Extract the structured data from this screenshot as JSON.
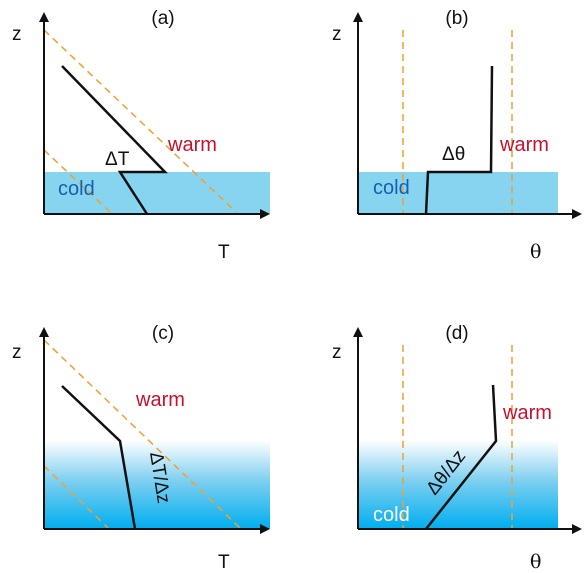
{
  "colors": {
    "cold_fill": "#87d4f1",
    "cold_gradient_bottom": "#00aeef",
    "warm_text": "#c8102e",
    "cold_text_dark": "#1560ad",
    "cold_text_light": "#ffffff",
    "isentrope": "#f0a030",
    "profile": "#111111"
  },
  "panels": [
    {
      "id": "a",
      "label": "(a)",
      "y_axis": "z",
      "x_axis": "T",
      "warm": "warm",
      "cold": "cold",
      "jump": "ΔT"
    },
    {
      "id": "b",
      "label": "(b)",
      "y_axis": "z",
      "x_axis": "θ",
      "warm": "warm",
      "cold": "cold",
      "jump": "Δθ"
    },
    {
      "id": "c",
      "label": "(c)",
      "y_axis": "z",
      "x_axis": "T",
      "warm": "warm",
      "gradient": "ΔT/Δz"
    },
    {
      "id": "d",
      "label": "(d)",
      "y_axis": "z",
      "x_axis": "θ",
      "warm": "warm",
      "cold": "cold",
      "gradient": "Δθ/Δz"
    }
  ]
}
